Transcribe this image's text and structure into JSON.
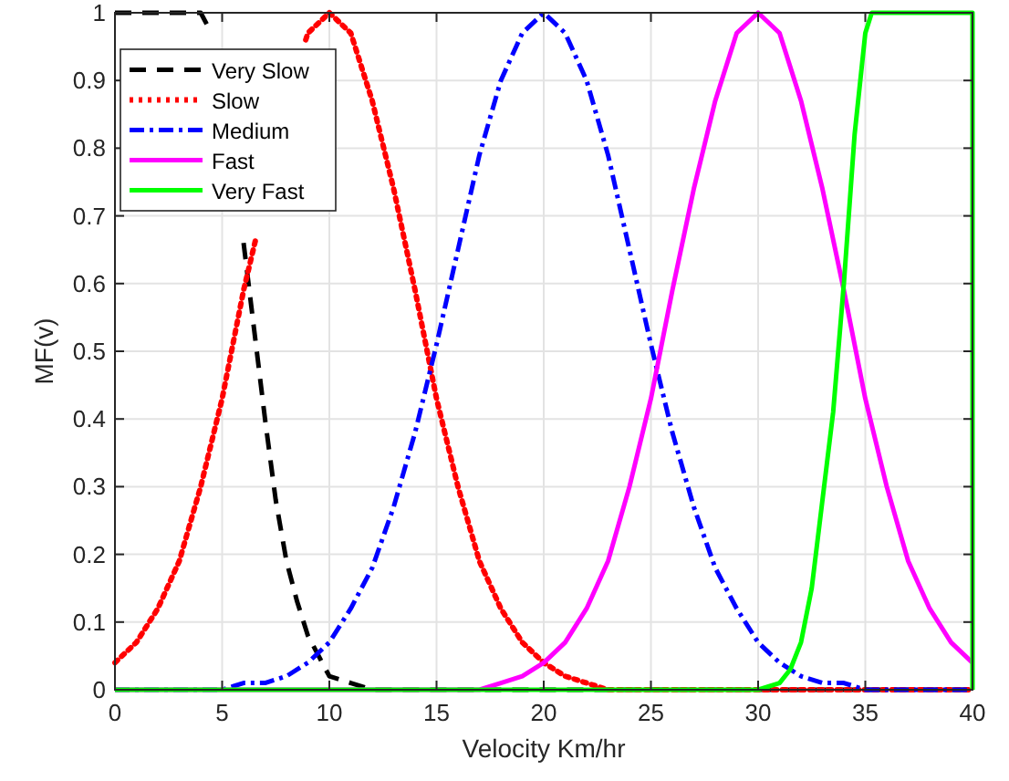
{
  "chart_data": {
    "type": "line",
    "xlabel": "Velocity Km/hr",
    "ylabel": "MF(v)",
    "xlim": [
      0,
      40
    ],
    "ylim": [
      0,
      1
    ],
    "xticks": [
      0,
      5,
      10,
      15,
      20,
      25,
      30,
      35,
      40
    ],
    "yticks": [
      0,
      0.1,
      0.2,
      0.3,
      0.4,
      0.5,
      0.6,
      0.7,
      0.8,
      0.9,
      1
    ],
    "grid": true,
    "legend": "top left",
    "marker": "none",
    "series": [
      {
        "name": "Very Slow",
        "color": "#000000",
        "line_style": "dashed",
        "x": [
          0,
          1,
          2,
          3,
          4,
          4.5,
          5,
          5.5,
          6,
          6.5,
          7,
          7.5,
          8,
          8.5,
          9,
          9.5,
          10,
          11,
          12,
          40
        ],
        "values": [
          1,
          1,
          1,
          1,
          1,
          0.97,
          null,
          null,
          0.66,
          0.53,
          0.4,
          0.28,
          0.19,
          0.13,
          0.08,
          0.05,
          0.02,
          0.01,
          0,
          0
        ]
      },
      {
        "name": "Slow",
        "color": "#ff0000",
        "line_style": "dotted",
        "x": [
          0,
          1,
          2,
          3,
          4,
          5,
          6,
          6.6,
          7.5,
          8.9,
          9,
          10,
          11,
          12,
          13,
          14,
          15,
          16,
          17,
          18,
          19,
          20,
          21,
          22,
          23,
          24,
          40
        ],
        "values": [
          0.04,
          0.07,
          0.12,
          0.19,
          0.3,
          0.43,
          0.59,
          0.67,
          null,
          0.96,
          0.97,
          1,
          0.97,
          0.87,
          0.74,
          0.59,
          0.43,
          0.3,
          0.19,
          0.12,
          0.07,
          0.04,
          0.02,
          0.01,
          0,
          0,
          0
        ]
      },
      {
        "name": "Medium",
        "color": "#0000ff",
        "line_style": "dashdot",
        "x": [
          0,
          5,
          6,
          7,
          8,
          9,
          10,
          11,
          12,
          13,
          14,
          15,
          16,
          17,
          18,
          19,
          20,
          21,
          22,
          23,
          24,
          25,
          26,
          27,
          28,
          29,
          30,
          31,
          32,
          33,
          34,
          35,
          40
        ],
        "values": [
          0,
          0,
          0.01,
          0.01,
          0.02,
          0.04,
          0.07,
          0.12,
          0.18,
          0.27,
          0.38,
          0.51,
          0.65,
          0.79,
          0.9,
          0.97,
          1,
          0.97,
          0.9,
          0.79,
          0.65,
          0.51,
          0.38,
          0.27,
          0.18,
          0.12,
          0.07,
          0.04,
          0.02,
          0.01,
          0.01,
          0,
          0
        ]
      },
      {
        "name": "Fast",
        "color": "#ff00ff",
        "line_style": "solid",
        "x": [
          0,
          17,
          18,
          19,
          20,
          21,
          22,
          23,
          24,
          25,
          26,
          27,
          28,
          29,
          30,
          31,
          32,
          33,
          34,
          35,
          36,
          37,
          38,
          39,
          40
        ],
        "values": [
          0,
          0,
          0.01,
          0.02,
          0.04,
          0.07,
          0.12,
          0.19,
          0.3,
          0.43,
          0.59,
          0.74,
          0.87,
          0.97,
          1,
          0.97,
          0.87,
          0.74,
          0.59,
          0.43,
          0.3,
          0.19,
          0.12,
          0.07,
          0.04
        ]
      },
      {
        "name": "Very Fast",
        "color": "#00ff00",
        "line_style": "solid",
        "x": [
          0,
          30,
          31,
          31.5,
          32,
          32.5,
          33,
          33.5,
          34,
          34.5,
          35,
          35.3,
          40,
          40
        ],
        "values": [
          0,
          0,
          0.01,
          0.03,
          0.07,
          0.15,
          0.28,
          0.41,
          0.6,
          0.82,
          0.97,
          1,
          1,
          0
        ]
      }
    ]
  }
}
